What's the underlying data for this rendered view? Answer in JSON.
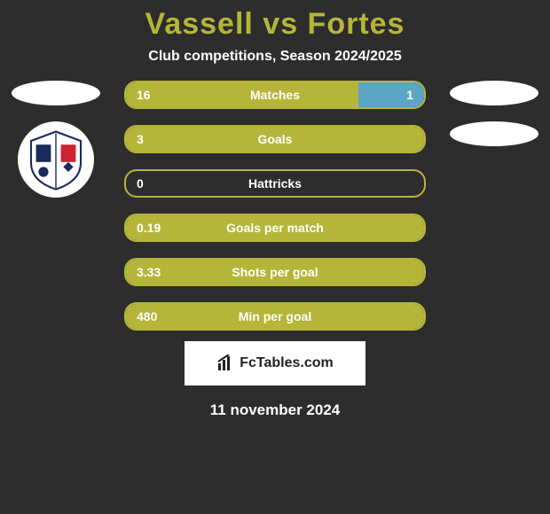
{
  "title": "Vassell vs Fortes",
  "subtitle": "Club competitions, Season 2024/2025",
  "date": "11 november 2024",
  "brand": "FcTables.com",
  "colors": {
    "title": "#b5b53a",
    "bar_border": "#b5b53a",
    "left_fill": "#b5b53a",
    "right_fill": "#5aa6c4",
    "background": "#2d2d2d",
    "text": "#ffffff"
  },
  "left_player": {
    "name": "Vassell",
    "club": "Barrow AFC"
  },
  "right_player": {
    "name": "Fortes",
    "club": ""
  },
  "rows": [
    {
      "label": "Matches",
      "left_val": "16",
      "right_val": "1",
      "left_pct": 78,
      "right_pct": 22
    },
    {
      "label": "Goals",
      "left_val": "3",
      "right_val": "",
      "left_pct": 100,
      "right_pct": 0
    },
    {
      "label": "Hattricks",
      "left_val": "0",
      "right_val": "",
      "left_pct": 0,
      "right_pct": 0
    },
    {
      "label": "Goals per match",
      "left_val": "0.19",
      "right_val": "",
      "left_pct": 100,
      "right_pct": 0
    },
    {
      "label": "Shots per goal",
      "left_val": "3.33",
      "right_val": "",
      "left_pct": 100,
      "right_pct": 0
    },
    {
      "label": "Min per goal",
      "left_val": "480",
      "right_val": "",
      "left_pct": 100,
      "right_pct": 0
    }
  ]
}
